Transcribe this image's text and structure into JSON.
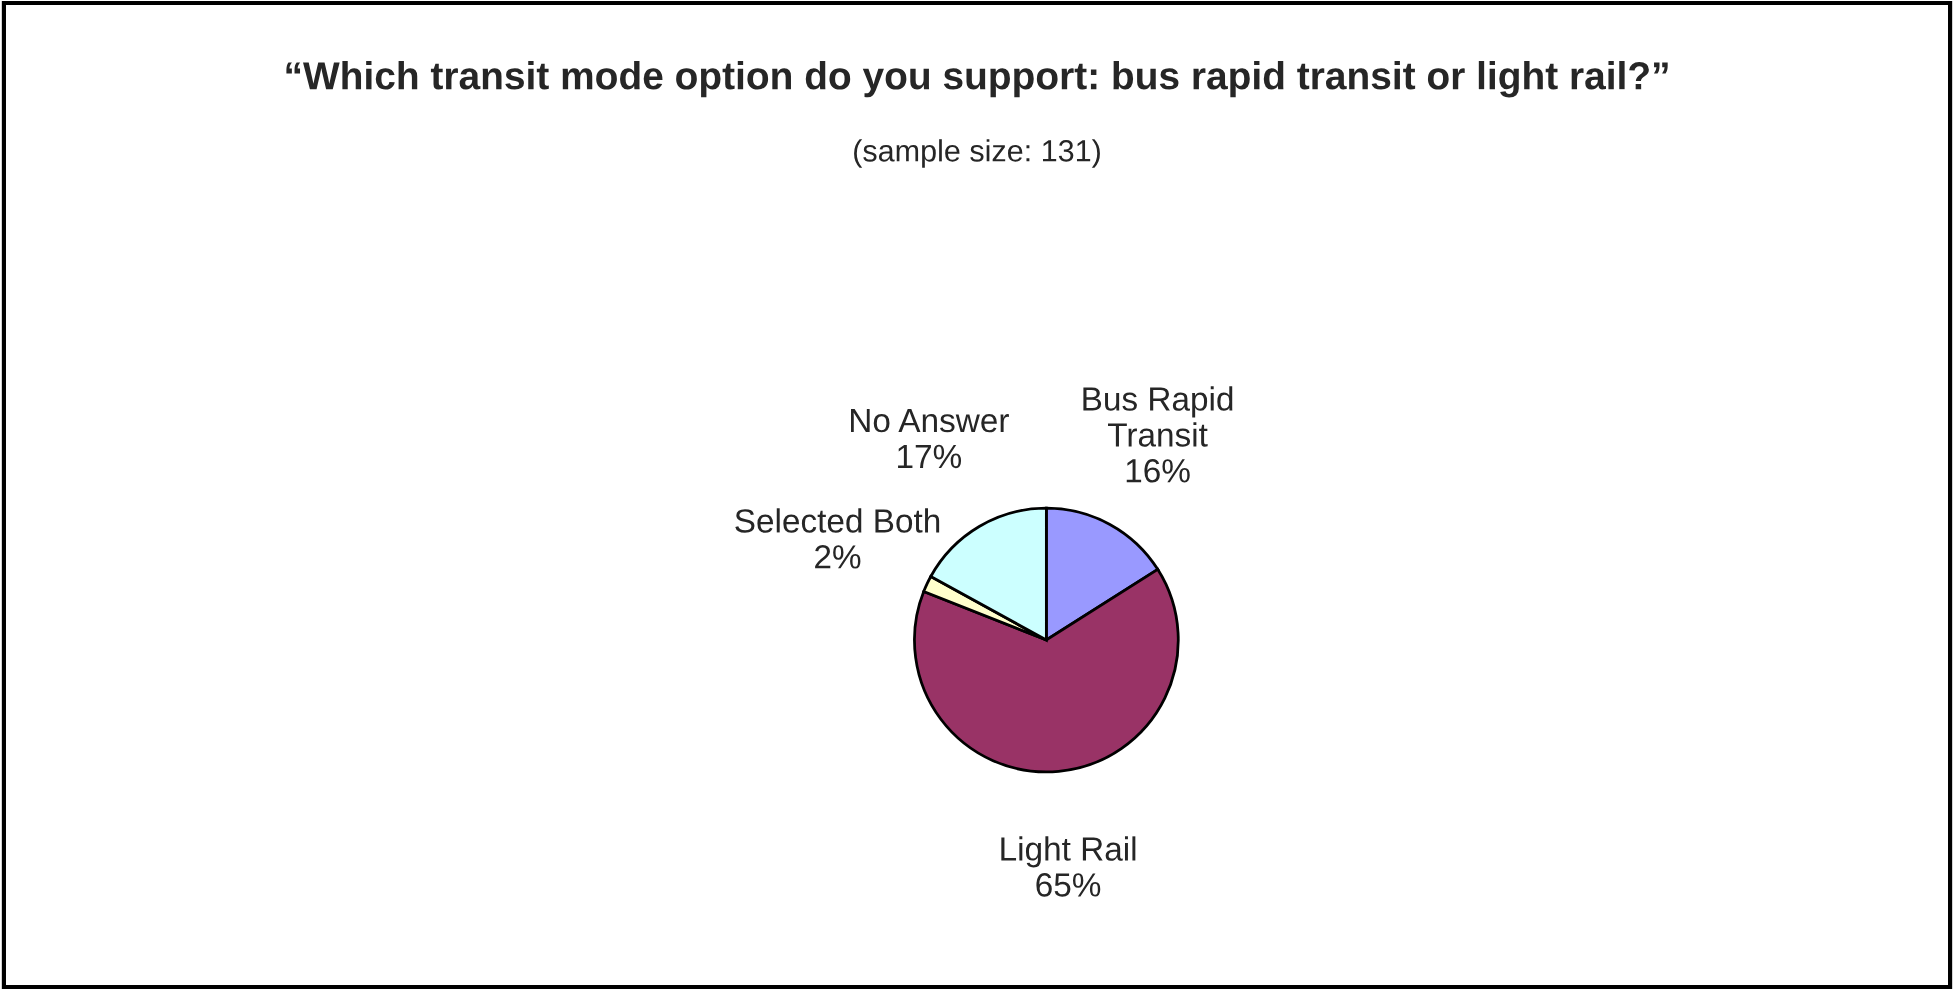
{
  "chart_data": {
    "type": "pie",
    "title": "“Which transit mode option do you support: bus rapid transit or light rail?”",
    "subtitle": "(sample size: 131)",
    "categories": [
      "Bus Rapid\nTransit",
      "Light Rail",
      "Selected Both",
      "No Answer"
    ],
    "values": [
      16,
      65,
      2,
      17
    ],
    "value_labels": [
      "16%",
      "65%",
      "2%",
      "17%"
    ],
    "colors": [
      "#9999ff",
      "#993366",
      "#ffffcc",
      "#ccffff"
    ]
  }
}
